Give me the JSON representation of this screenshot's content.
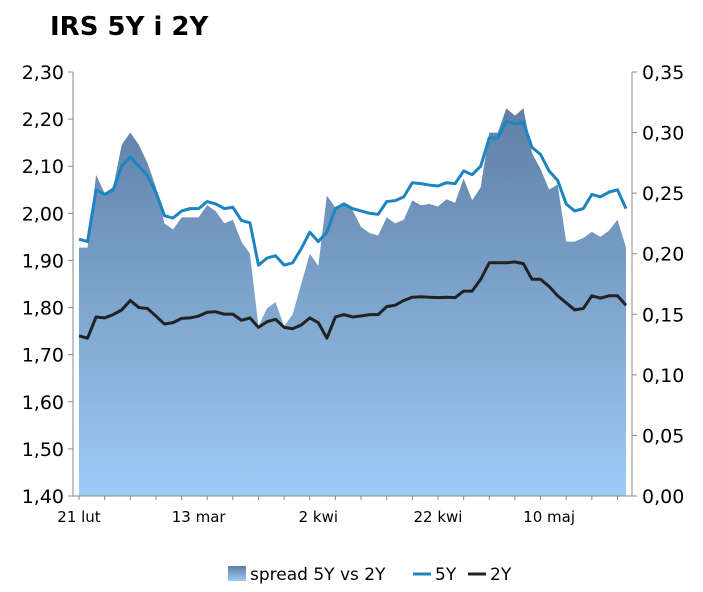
{
  "chart_data": {
    "type": "line",
    "title": "IRS 5Y i 2Y",
    "x_tick_labels": [
      "21 lut",
      "13 mar",
      "2 kwi",
      "22 kwi",
      "10 maj"
    ],
    "left_axis": {
      "min": 1.4,
      "max": 2.3,
      "step": 0.1,
      "tick_labels": [
        "1,40",
        "1,50",
        "1,60",
        "1,70",
        "1,80",
        "1,90",
        "2,00",
        "2,10",
        "2,20",
        "2,30"
      ]
    },
    "right_axis": {
      "min": 0.0,
      "max": 0.35,
      "step": 0.05,
      "tick_labels": [
        "0,00",
        "0,05",
        "0,10",
        "0,15",
        "0,20",
        "0,25",
        "0,30",
        "0,35"
      ]
    },
    "grid": false,
    "legend_position": "bottom",
    "colors": {
      "spread_top": "#5f7fa6",
      "spread_bottom": "#9dcbf5",
      "five_y": "#1c84c0",
      "two_y": "#222222"
    },
    "series": [
      {
        "name": "spread 5Y vs 2Y",
        "axis": "right",
        "kind": "area",
        "values": [
          0.205,
          0.205,
          0.265,
          0.25,
          0.255,
          0.29,
          0.3,
          0.29,
          0.275,
          0.255,
          0.225,
          0.22,
          0.23,
          0.23,
          0.23,
          0.24,
          0.235,
          0.225,
          0.228,
          0.21,
          0.2,
          0.14,
          0.155,
          0.16,
          0.14,
          0.15,
          0.175,
          0.2,
          0.19,
          0.248,
          0.238,
          0.242,
          0.236,
          0.222,
          0.217,
          0.215,
          0.23,
          0.225,
          0.228,
          0.244,
          0.24,
          0.241,
          0.239,
          0.245,
          0.242,
          0.262,
          0.244,
          0.255,
          0.3,
          0.3,
          0.32,
          0.314,
          0.32,
          0.283,
          0.27,
          0.253,
          0.257,
          0.21,
          0.21,
          0.213,
          0.218,
          0.214,
          0.219,
          0.228,
          0.205
        ]
      },
      {
        "name": "5Y",
        "axis": "left",
        "kind": "line",
        "values": [
          1.945,
          1.94,
          2.05,
          2.04,
          2.05,
          2.1,
          2.12,
          2.1,
          2.08,
          2.045,
          1.995,
          1.99,
          2.005,
          2.01,
          2.01,
          2.025,
          2.02,
          2.01,
          2.013,
          1.985,
          1.98,
          1.89,
          1.905,
          1.91,
          1.89,
          1.895,
          1.925,
          1.96,
          1.94,
          1.96,
          2.01,
          2.02,
          2.01,
          2.005,
          2.0,
          1.998,
          2.025,
          2.027,
          2.035,
          2.065,
          2.063,
          2.06,
          2.058,
          2.065,
          2.063,
          2.09,
          2.082,
          2.1,
          2.16,
          2.16,
          2.195,
          2.19,
          2.193,
          2.14,
          2.125,
          2.09,
          2.07,
          2.02,
          2.005,
          2.01,
          2.04,
          2.035,
          2.045,
          2.05,
          2.01
        ]
      },
      {
        "name": "2Y",
        "axis": "left",
        "kind": "line",
        "values": [
          1.74,
          1.735,
          1.78,
          1.778,
          1.785,
          1.795,
          1.815,
          1.8,
          1.798,
          1.782,
          1.765,
          1.768,
          1.777,
          1.778,
          1.782,
          1.79,
          1.791,
          1.786,
          1.786,
          1.773,
          1.778,
          1.758,
          1.77,
          1.775,
          1.758,
          1.755,
          1.763,
          1.778,
          1.768,
          1.735,
          1.78,
          1.785,
          1.78,
          1.782,
          1.785,
          1.785,
          1.802,
          1.805,
          1.815,
          1.822,
          1.823,
          1.822,
          1.821,
          1.822,
          1.821,
          1.835,
          1.835,
          1.86,
          1.895,
          1.895,
          1.895,
          1.897,
          1.893,
          1.86,
          1.86,
          1.845,
          1.825,
          1.81,
          1.795,
          1.798,
          1.825,
          1.82,
          1.825,
          1.825,
          1.805
        ]
      }
    ]
  }
}
